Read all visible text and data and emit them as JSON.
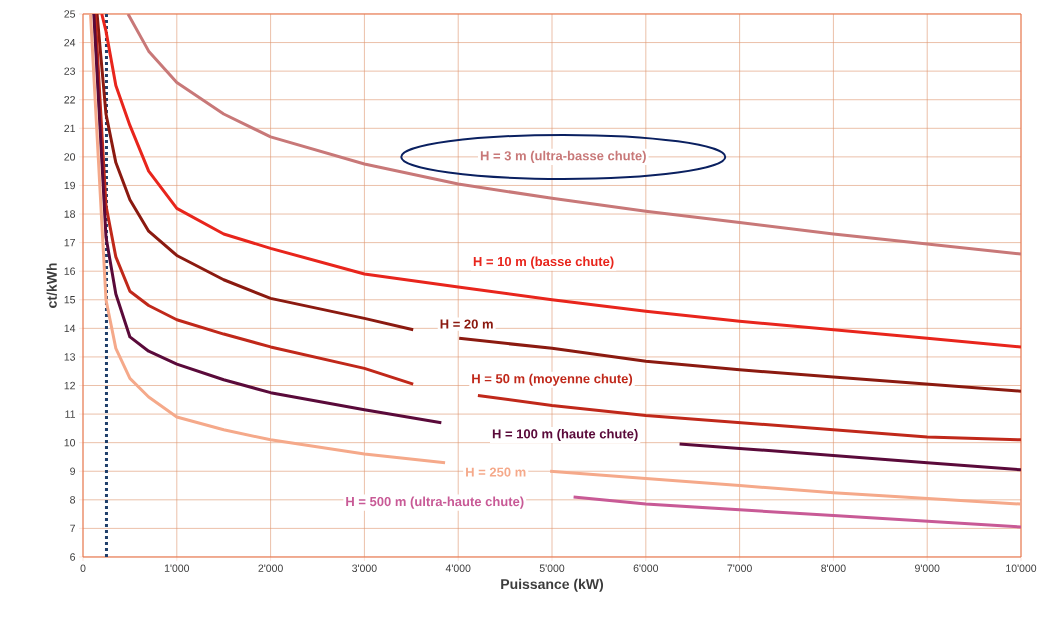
{
  "chart_data": {
    "type": "line",
    "xlabel": "Puissance (kW)",
    "ylabel": "ct/kWh",
    "xlim": [
      0,
      10000
    ],
    "ylim": [
      6,
      25
    ],
    "xticks": [
      0,
      {
        "value": 1000,
        "label": "1'000"
      },
      {
        "value": 2000,
        "label": "2'000"
      },
      {
        "value": 3000,
        "label": "3'000"
      },
      {
        "value": 4000,
        "label": "4'000"
      },
      {
        "value": 5000,
        "label": "5'000"
      },
      {
        "value": 6000,
        "label": "6'000"
      },
      {
        "value": 7000,
        "label": "7'000"
      },
      {
        "value": 8000,
        "label": "8'000"
      },
      {
        "value": 9000,
        "label": "9'000"
      },
      {
        "value": 10000,
        "label": "10'000"
      }
    ],
    "yticks": [
      6,
      7,
      8,
      9,
      10,
      11,
      12,
      13,
      14,
      15,
      16,
      17,
      18,
      19,
      20,
      21,
      22,
      23,
      24,
      25
    ],
    "grid": true,
    "marker": "none",
    "line_style": "solid",
    "series": [
      {
        "name": "H = 3 m (ultra-basse chute)",
        "color": "#c87878",
        "x": [
          480,
          700,
          1000,
          1500,
          2000,
          3000,
          4000,
          5000,
          6000,
          7000,
          8000,
          9000,
          10000
        ],
        "values": [
          25,
          23.7,
          22.6,
          21.5,
          20.7,
          19.75,
          19.05,
          18.55,
          18.1,
          17.7,
          17.3,
          16.95,
          16.6
        ]
      },
      {
        "name": "H = 10 m  (basse chute)",
        "color": "#e8251c",
        "x": [
          200,
          245,
          350,
          500,
          700,
          1000,
          1500,
          2000,
          3000,
          4000,
          5000,
          6000,
          7000,
          8000,
          9000,
          10000
        ],
        "values": [
          25,
          24.4,
          22.5,
          21.1,
          19.5,
          18.2,
          17.3,
          16.8,
          15.9,
          15.45,
          15.0,
          14.6,
          14.25,
          13.95,
          13.65,
          13.35
        ]
      },
      {
        "name": "H = 20 m",
        "color": "#8b1a10",
        "x": [
          150,
          245,
          350,
          500,
          700,
          1000,
          1500,
          2000,
          3000,
          3520,
          3800,
          4010,
          5000,
          6000,
          7000,
          8000,
          9000,
          10000
        ],
        "values": [
          25,
          21.5,
          19.8,
          18.5,
          17.4,
          16.55,
          15.7,
          15.05,
          14.35,
          13.95,
          null,
          13.65,
          13.3,
          12.85,
          12.55,
          12.3,
          12.05,
          11.8
        ]
      },
      {
        "name": "H = 50 m (moyenne chute)",
        "color": "#c0281a",
        "x": [
          130,
          245,
          350,
          500,
          700,
          1000,
          1500,
          2000,
          3000,
          3520,
          3900,
          4210,
          5000,
          6000,
          7000,
          8000,
          9000,
          10000
        ],
        "values": [
          25,
          18.3,
          16.5,
          15.3,
          14.8,
          14.3,
          13.8,
          13.35,
          12.6,
          12.05,
          null,
          11.65,
          11.3,
          10.95,
          10.7,
          10.45,
          10.2,
          10.1
        ]
      },
      {
        "name": "H = 100 m (haute chute)",
        "color": "#5a0a3a",
        "x": [
          115,
          245,
          350,
          500,
          700,
          1000,
          1500,
          2000,
          3000,
          3820,
          5000,
          6360,
          7000,
          8000,
          9000,
          10000
        ],
        "values": [
          25,
          17.2,
          15.2,
          13.7,
          13.2,
          12.75,
          12.2,
          11.75,
          11.15,
          10.7,
          null,
          9.95,
          9.8,
          9.55,
          9.3,
          9.05
        ]
      },
      {
        "name": "H = 250 m",
        "color": "#f5a98a",
        "x": [
          80,
          245,
          350,
          500,
          700,
          1000,
          1500,
          2000,
          3000,
          3860,
          4500,
          4980,
          6000,
          7000,
          8000,
          9000,
          10000
        ],
        "values": [
          25,
          15.0,
          13.3,
          12.25,
          11.6,
          10.9,
          10.45,
          10.1,
          9.6,
          9.3,
          null,
          9.0,
          8.75,
          8.5,
          8.25,
          8.05,
          7.85
        ]
      },
      {
        "name": "H = 500 m (ultra-haute chute)",
        "color": "#c85a96",
        "x": [
          5230,
          6000,
          7000,
          8000,
          9000,
          10000
        ],
        "values": [
          8.1,
          7.85,
          7.65,
          7.45,
          7.25,
          7.05
        ]
      }
    ],
    "ref_lines": [
      {
        "axis": "x",
        "value": 250,
        "color": "#1f3f6a",
        "line_style": "dotted"
      }
    ]
  }
}
